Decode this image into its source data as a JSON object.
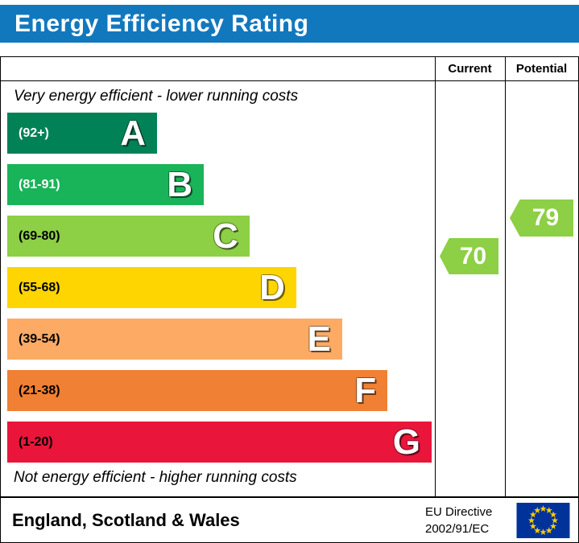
{
  "title": "Energy Efficiency Rating",
  "columns": {
    "current": "Current",
    "potential": "Potential"
  },
  "notes": {
    "top": "Very energy efficient - lower running costs",
    "bottom": "Not energy efficient - higher running costs"
  },
  "bands": [
    {
      "letter": "A",
      "range": "(92+)",
      "color": "#008156",
      "width_pct": 35.3,
      "range_color": "#ffffff"
    },
    {
      "letter": "B",
      "range": "(81-91)",
      "color": "#19b359",
      "width_pct": 46.3,
      "range_color": "#ffffff"
    },
    {
      "letter": "C",
      "range": "(69-80)",
      "color": "#8dcf45",
      "width_pct": 57.1,
      "range_color": "#000000"
    },
    {
      "letter": "D",
      "range": "(55-68)",
      "color": "#ffd500",
      "width_pct": 68.1,
      "range_color": "#000000"
    },
    {
      "letter": "E",
      "range": "(39-54)",
      "color": "#fcaa64",
      "width_pct": 78.9,
      "range_color": "#000000"
    },
    {
      "letter": "F",
      "range": "(21-38)",
      "color": "#ef8034",
      "width_pct": 89.6,
      "range_color": "#000000"
    },
    {
      "letter": "G",
      "range": "(1-20)",
      "color": "#e9153b",
      "width_pct": 100,
      "range_color": "#000000"
    }
  ],
  "indicators": {
    "current": {
      "value": "70",
      "color": "#8dcf45"
    },
    "potential": {
      "value": "79",
      "color": "#8dcf45"
    }
  },
  "footer": {
    "region": "England, Scotland & Wales",
    "directive_line1": "EU Directive",
    "directive_line2": "2002/91/EC"
  },
  "colors": {
    "header_bg": "#1278be",
    "header_text": "#ffffff"
  },
  "chart_data": {
    "type": "bar",
    "orientation": "horizontal",
    "title": "Energy Efficiency Rating",
    "categories": [
      "A",
      "B",
      "C",
      "D",
      "E",
      "F",
      "G"
    ],
    "band_ranges": [
      "92+",
      "81-91",
      "69-80",
      "55-68",
      "39-54",
      "21-38",
      "1-20"
    ],
    "band_colors": [
      "#008156",
      "#19b359",
      "#8dcf45",
      "#ffd500",
      "#fcaa64",
      "#ef8034",
      "#e9153b"
    ],
    "scale_min": 1,
    "scale_max": 100,
    "current": 70,
    "potential": 79,
    "legend_position": "none",
    "annotations": [
      "Very energy efficient - lower running costs",
      "Not energy efficient - higher running costs"
    ],
    "footer": "England, Scotland & Wales",
    "directive": "EU Directive 2002/91/EC"
  }
}
